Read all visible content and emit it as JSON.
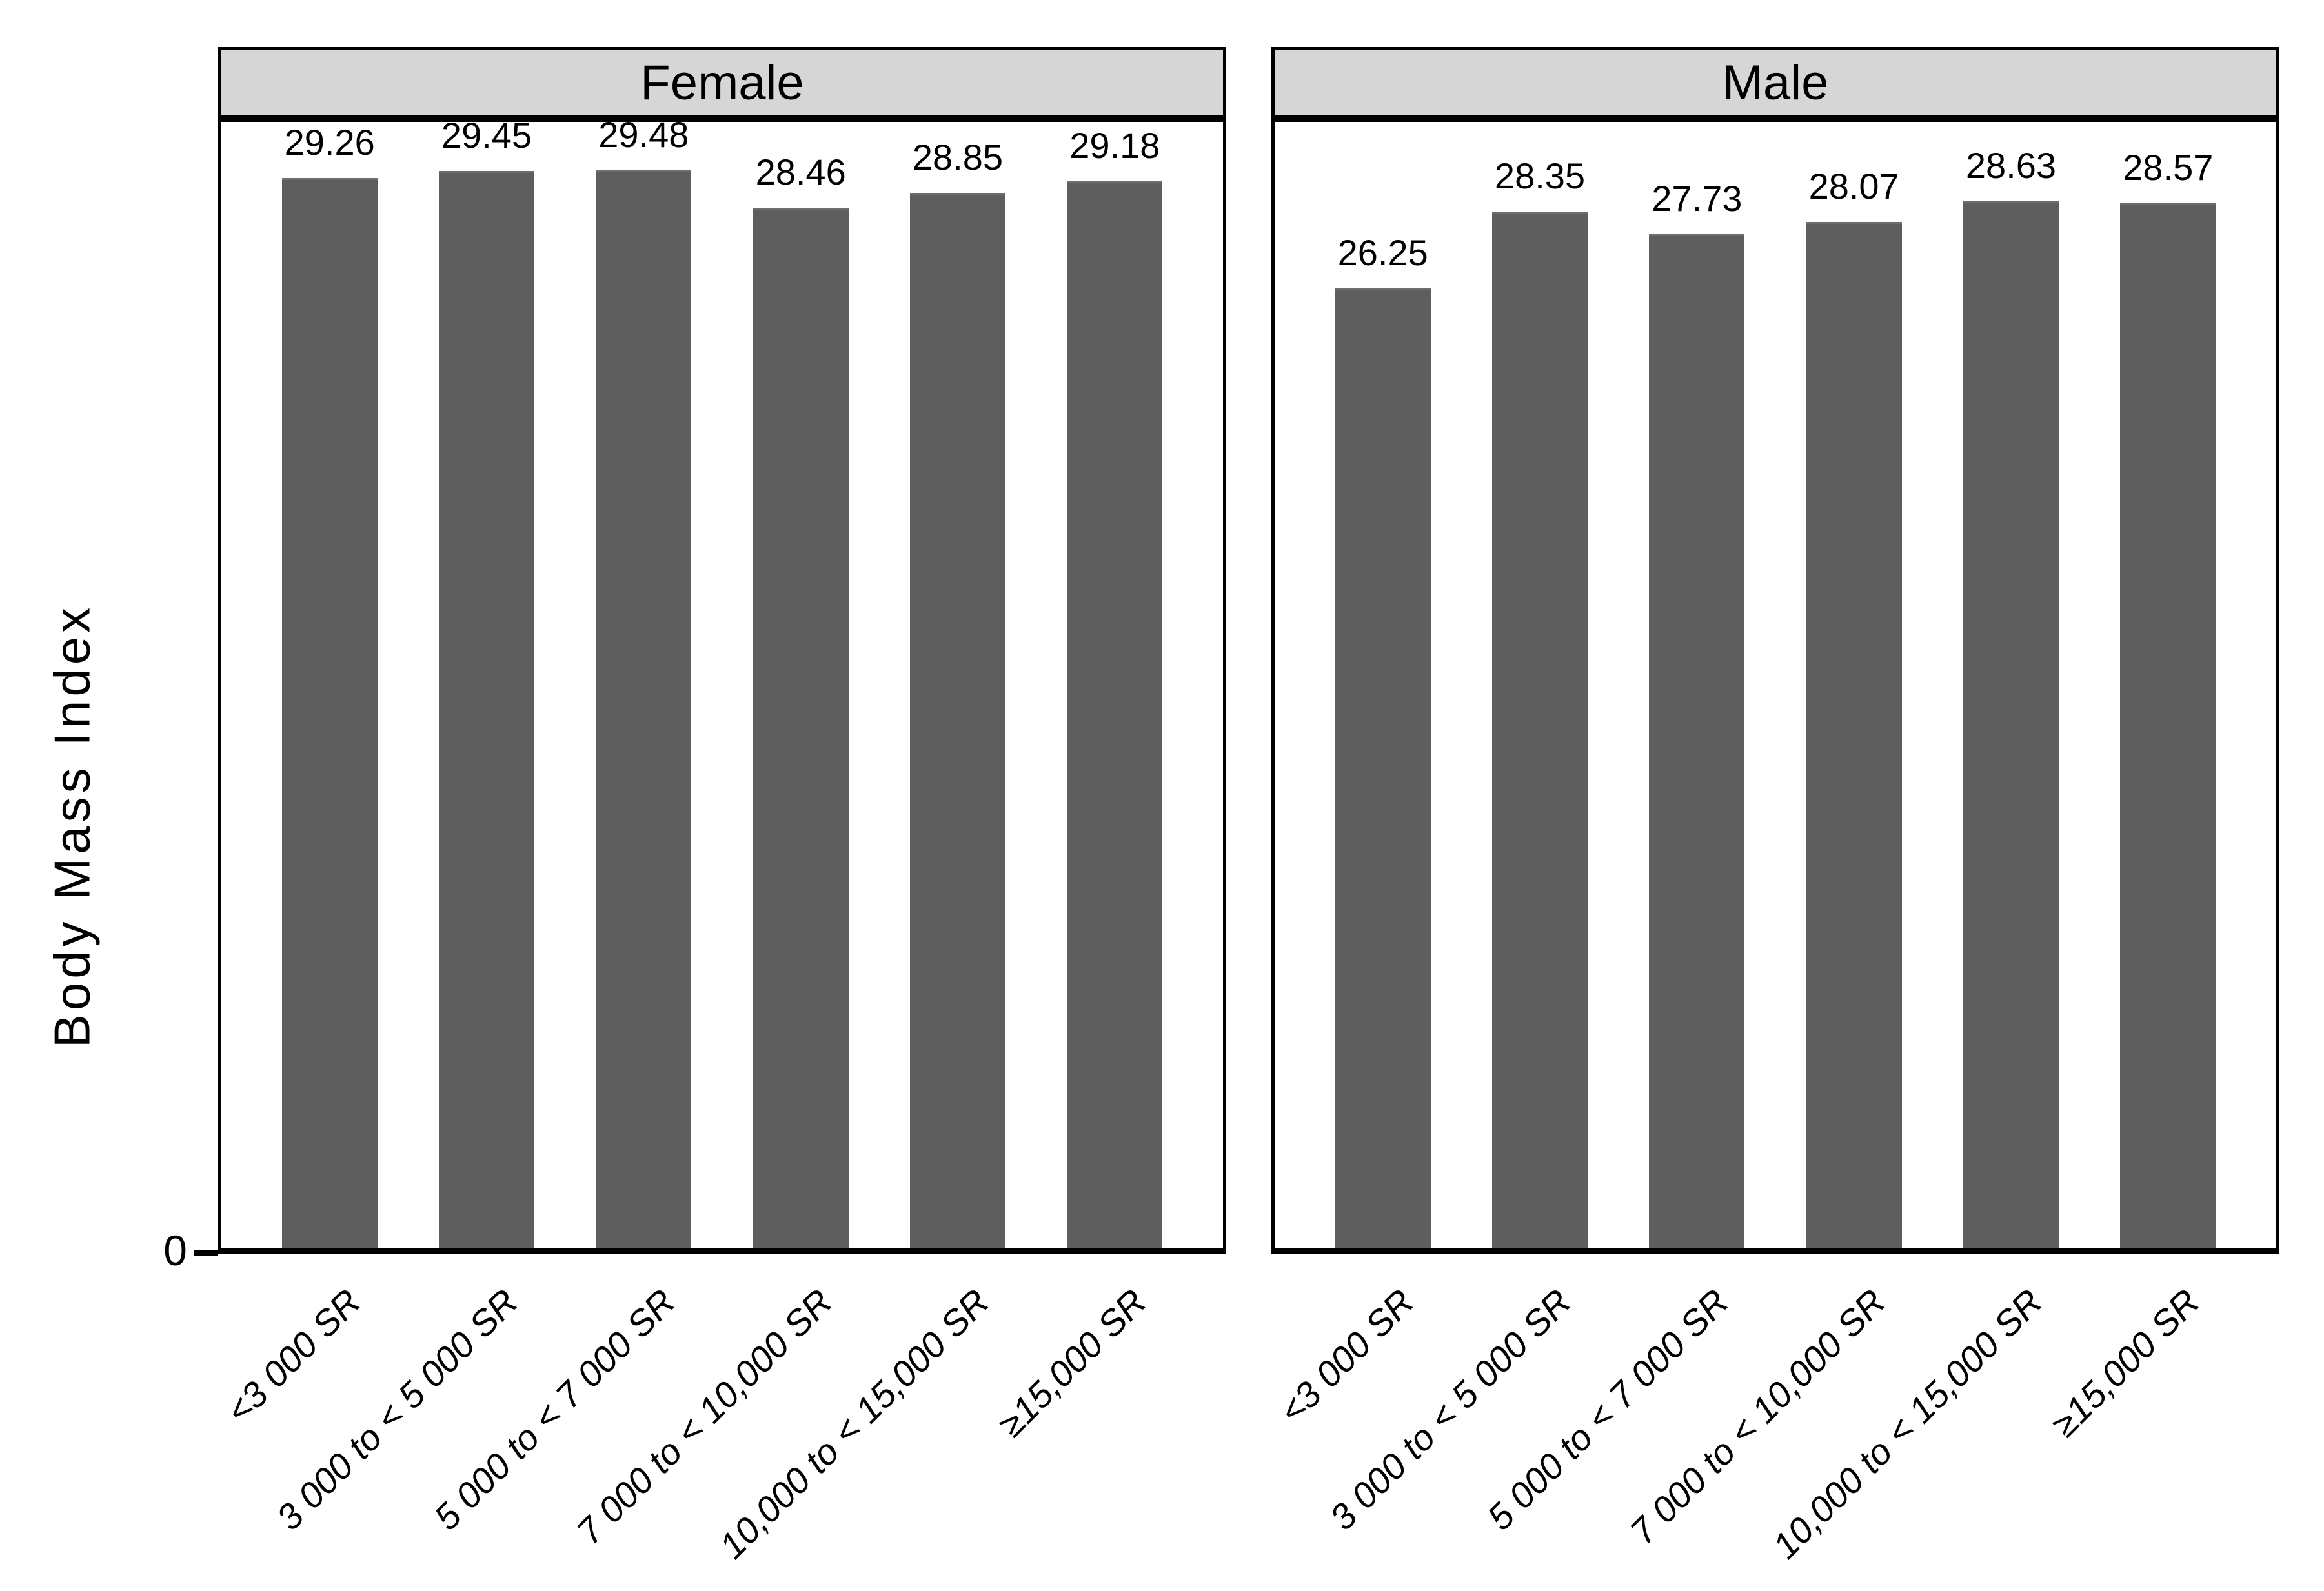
{
  "figure": {
    "ylabel": "Body Mass Index",
    "y_tick_zero": "0",
    "colors": {
      "bar_fill": "#5e5e5e",
      "header_fill": "#d6d6d6",
      "border": "#000000",
      "background": "#ffffff"
    }
  },
  "chart_data": {
    "type": "bar",
    "title": "",
    "xlabel": "",
    "ylabel": "Body Mass Index",
    "ylim": [
      0,
      30.8
    ],
    "grid": false,
    "legend_position": "none",
    "y_ticks": [
      "0"
    ],
    "categories": [
      "<3 000 SR",
      "3 000 to < 5 000 SR",
      "5 000 to < 7 000 SR",
      "7 000 to < 10,000 SR",
      "10,000 to < 15,000 SR",
      "≥15,000 SR"
    ],
    "facets": [
      {
        "title": "Female",
        "values": [
          29.26,
          29.45,
          29.48,
          28.46,
          28.85,
          29.18
        ]
      },
      {
        "title": "Male",
        "values": [
          26.25,
          28.35,
          27.73,
          28.07,
          28.63,
          28.57
        ]
      }
    ]
  }
}
